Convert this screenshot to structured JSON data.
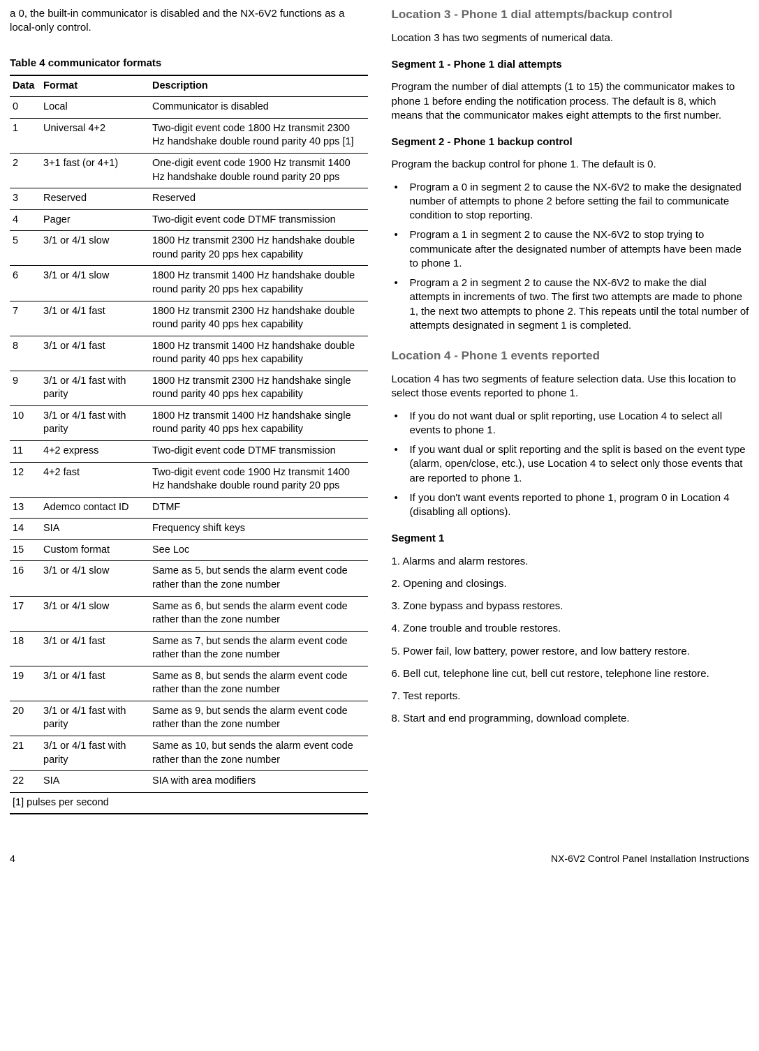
{
  "left": {
    "intro": "a 0, the built-in communicator is disabled and the NX-6V2 functions as a local-only control.",
    "table_caption": "Table 4 communicator formats",
    "columns": [
      "Data",
      "Format",
      "Description"
    ],
    "rows": [
      [
        "0",
        "Local",
        "Communicator is disabled"
      ],
      [
        "1",
        "Universal 4+2",
        "Two-digit event code 1800 Hz transmit 2300 Hz handshake double round parity 40 pps [1]"
      ],
      [
        "2",
        "3+1 fast (or 4+1)",
        "One-digit event code 1900 Hz transmit 1400 Hz handshake double round parity 20 pps"
      ],
      [
        "3",
        "Reserved",
        "Reserved"
      ],
      [
        "4",
        "Pager",
        "Two-digit event code DTMF transmission"
      ],
      [
        "5",
        "3/1 or 4/1 slow",
        "1800 Hz transmit 2300 Hz handshake double round parity 20 pps hex capability"
      ],
      [
        "6",
        "3/1 or 4/1 slow",
        "1800 Hz transmit 1400 Hz handshake double round parity 20 pps hex capability"
      ],
      [
        "7",
        "3/1 or 4/1 fast",
        "1800 Hz transmit 2300 Hz handshake double round parity 40 pps hex capability"
      ],
      [
        "8",
        "3/1 or 4/1 fast",
        "1800 Hz transmit 1400 Hz handshake double round parity 40 pps hex capability"
      ],
      [
        "9",
        "3/1 or 4/1 fast with parity",
        "1800 Hz transmit 2300 Hz handshake single round parity 40 pps hex capability"
      ],
      [
        "10",
        "3/1 or 4/1 fast with parity",
        "1800 Hz transmit 1400 Hz handshake single round parity 40 pps hex capability"
      ],
      [
        "11",
        "4+2 express",
        "Two-digit event code DTMF transmission"
      ],
      [
        "12",
        "4+2 fast",
        "Two-digit event code 1900 Hz transmit 1400 Hz handshake double round parity 20 pps"
      ],
      [
        "13",
        "Ademco contact ID",
        "DTMF"
      ],
      [
        "14",
        "SIA",
        "Frequency shift keys"
      ],
      [
        "15",
        "Custom format",
        "See Loc"
      ],
      [
        "16",
        "3/1 or 4/1 slow",
        "Same as 5, but sends the alarm event code rather than the zone number"
      ],
      [
        "17",
        "3/1 or 4/1 slow",
        "Same as 6, but sends the alarm event code rather than the zone number"
      ],
      [
        "18",
        "3/1 or 4/1 fast",
        "Same as 7, but sends the alarm event code rather than the zone number"
      ],
      [
        "19",
        "3/1 or 4/1 fast",
        "Same as 8, but sends the alarm event code rather than the zone number"
      ],
      [
        "20",
        "3/1 or 4/1 fast with parity",
        "Same as 9, but sends the alarm event code rather than the zone number"
      ],
      [
        "21",
        "3/1 or 4/1 fast with parity",
        "Same as 10, but sends the alarm event code rather than the zone number"
      ],
      [
        "22",
        "SIA",
        "SIA with area modifiers"
      ]
    ],
    "footnote": "[1] pulses per second"
  },
  "right": {
    "loc3_heading": "Location 3 - Phone 1 dial attempts/backup control",
    "loc3_intro": "Location 3 has two segments of numerical data.",
    "seg1_heading": "Segment 1 - Phone 1 dial attempts",
    "seg1_body": "Program the number of dial attempts (1 to 15) the communicator makes to phone 1 before ending the notification process. The default is 8, which means that the communicator makes eight attempts to the first number.",
    "seg2_heading": "Segment 2 - Phone 1 backup control",
    "seg2_intro": "Program the backup control for phone 1. The default is 0.",
    "seg2_bullets": [
      "Program a 0 in segment 2 to cause the NX-6V2 to make the designated number of attempts to phone 2 before setting the fail to communicate condition to stop reporting.",
      "Program a 1 in segment 2 to cause the NX-6V2 to stop trying to communicate after the designated number of attempts have been made to phone 1.",
      "Program a 2 in segment 2 to cause the NX-6V2 to make the dial attempts in increments of two. The first two attempts are made to phone 1, the next two attempts to phone 2. This repeats until the total number of attempts designated in segment 1 is completed."
    ],
    "loc4_heading": "Location 4 - Phone 1 events reported",
    "loc4_intro": "Location 4 has two segments of feature selection data. Use this location to select those events reported to phone 1.",
    "loc4_bullets": [
      "If you do not want dual or split reporting, use Location 4 to select all events to phone 1.",
      "If you want dual or split reporting and the split is based on the event type (alarm, open/close, etc.), use Location 4 to select only those events that are reported to phone 1.",
      "If you don't want events reported to phone 1, program 0 in Location 4 (disabling all options)."
    ],
    "seg1b_heading": "Segment 1",
    "seg1b_items": [
      "1. Alarms and alarm restores.",
      "2. Opening and closings.",
      "3. Zone bypass and bypass restores.",
      "4. Zone trouble and trouble restores.",
      "5. Power fail, low battery, power restore, and low battery restore.",
      "6. Bell cut, telephone line cut, bell cut restore, telephone line restore.",
      "7. Test reports.",
      "8. Start and end programming, download complete."
    ]
  },
  "footer": {
    "page": "4",
    "title": "NX-6V2 Control Panel Installation Instructions"
  }
}
